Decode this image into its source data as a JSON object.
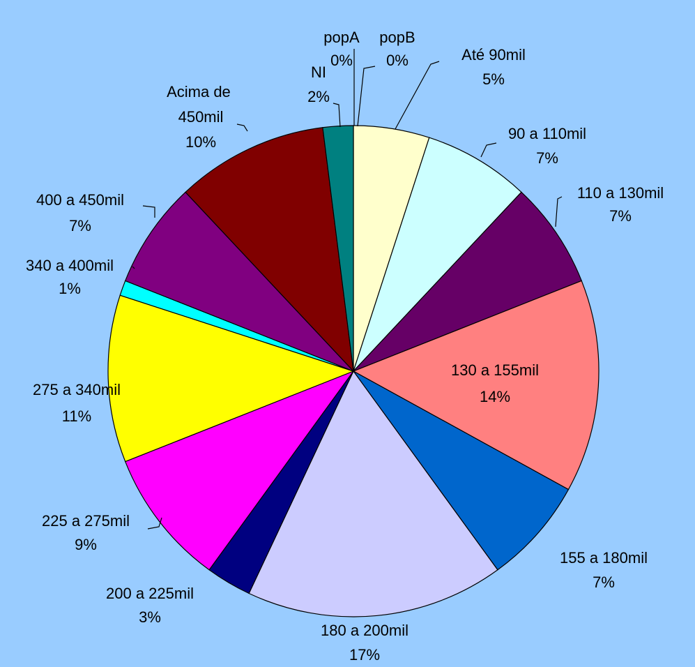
{
  "chart_data": {
    "type": "pie",
    "categories": [
      "popA",
      "popB",
      "Até 90mil",
      "90 a 110mil",
      "110 a 130mil",
      "130 a 155mil",
      "155 a 180mil",
      "180 a 200mil",
      "200 a 225mil",
      "225 a 275mil",
      "275 a 340mil",
      "340 a 400mil",
      "400 a 450mil",
      "Acima de 450mil",
      "NI"
    ],
    "values": [
      0,
      0,
      5,
      7,
      7,
      14,
      7,
      17,
      3,
      9,
      11,
      1,
      7,
      10,
      2
    ],
    "value_labels": [
      "0%",
      "0%",
      "5%",
      "7%",
      "7%",
      "14%",
      "7%",
      "17%",
      "3%",
      "9%",
      "11%",
      "1%",
      "7%",
      "10%",
      "2%"
    ],
    "colors": [
      "#000080",
      "#993366",
      "#ffffcc",
      "#ccffff",
      "#660066",
      "#ff8080",
      "#0066cc",
      "#ccccff",
      "#000080",
      "#ff00ff",
      "#ffff00",
      "#00ffff",
      "#800080",
      "#800000",
      "#008080"
    ]
  }
}
